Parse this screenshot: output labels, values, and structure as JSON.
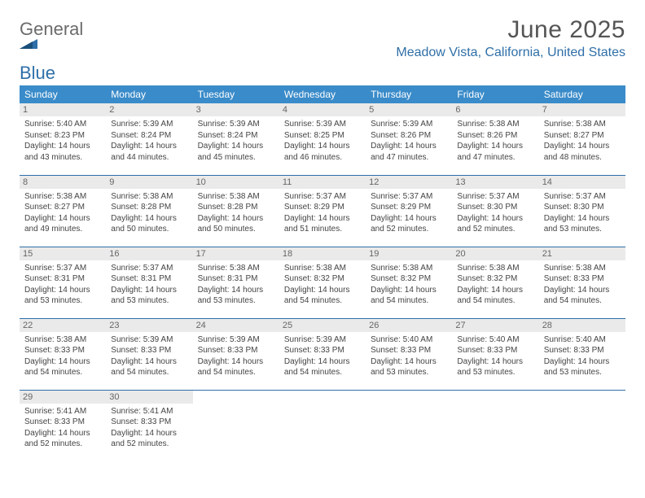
{
  "logo": {
    "line1": "General",
    "line2": "Blue"
  },
  "title": "June 2025",
  "location": "Meadow Vista, California, United States",
  "colors": {
    "header_bg": "#3a8bc9",
    "accent": "#2f6fa8",
    "text": "#333333",
    "muted": "#666666",
    "daynum_bg": "#eaeaea"
  },
  "weekdays": [
    "Sunday",
    "Monday",
    "Tuesday",
    "Wednesday",
    "Thursday",
    "Friday",
    "Saturday"
  ],
  "days": [
    {
      "n": 1,
      "sunrise": "5:40 AM",
      "sunset": "8:23 PM",
      "daylight": "14 hours and 43 minutes."
    },
    {
      "n": 2,
      "sunrise": "5:39 AM",
      "sunset": "8:24 PM",
      "daylight": "14 hours and 44 minutes."
    },
    {
      "n": 3,
      "sunrise": "5:39 AM",
      "sunset": "8:24 PM",
      "daylight": "14 hours and 45 minutes."
    },
    {
      "n": 4,
      "sunrise": "5:39 AM",
      "sunset": "8:25 PM",
      "daylight": "14 hours and 46 minutes."
    },
    {
      "n": 5,
      "sunrise": "5:39 AM",
      "sunset": "8:26 PM",
      "daylight": "14 hours and 47 minutes."
    },
    {
      "n": 6,
      "sunrise": "5:38 AM",
      "sunset": "8:26 PM",
      "daylight": "14 hours and 47 minutes."
    },
    {
      "n": 7,
      "sunrise": "5:38 AM",
      "sunset": "8:27 PM",
      "daylight": "14 hours and 48 minutes."
    },
    {
      "n": 8,
      "sunrise": "5:38 AM",
      "sunset": "8:27 PM",
      "daylight": "14 hours and 49 minutes."
    },
    {
      "n": 9,
      "sunrise": "5:38 AM",
      "sunset": "8:28 PM",
      "daylight": "14 hours and 50 minutes."
    },
    {
      "n": 10,
      "sunrise": "5:38 AM",
      "sunset": "8:28 PM",
      "daylight": "14 hours and 50 minutes."
    },
    {
      "n": 11,
      "sunrise": "5:37 AM",
      "sunset": "8:29 PM",
      "daylight": "14 hours and 51 minutes."
    },
    {
      "n": 12,
      "sunrise": "5:37 AM",
      "sunset": "8:29 PM",
      "daylight": "14 hours and 52 minutes."
    },
    {
      "n": 13,
      "sunrise": "5:37 AM",
      "sunset": "8:30 PM",
      "daylight": "14 hours and 52 minutes."
    },
    {
      "n": 14,
      "sunrise": "5:37 AM",
      "sunset": "8:30 PM",
      "daylight": "14 hours and 53 minutes."
    },
    {
      "n": 15,
      "sunrise": "5:37 AM",
      "sunset": "8:31 PM",
      "daylight": "14 hours and 53 minutes."
    },
    {
      "n": 16,
      "sunrise": "5:37 AM",
      "sunset": "8:31 PM",
      "daylight": "14 hours and 53 minutes."
    },
    {
      "n": 17,
      "sunrise": "5:38 AM",
      "sunset": "8:31 PM",
      "daylight": "14 hours and 53 minutes."
    },
    {
      "n": 18,
      "sunrise": "5:38 AM",
      "sunset": "8:32 PM",
      "daylight": "14 hours and 54 minutes."
    },
    {
      "n": 19,
      "sunrise": "5:38 AM",
      "sunset": "8:32 PM",
      "daylight": "14 hours and 54 minutes."
    },
    {
      "n": 20,
      "sunrise": "5:38 AM",
      "sunset": "8:32 PM",
      "daylight": "14 hours and 54 minutes."
    },
    {
      "n": 21,
      "sunrise": "5:38 AM",
      "sunset": "8:33 PM",
      "daylight": "14 hours and 54 minutes."
    },
    {
      "n": 22,
      "sunrise": "5:38 AM",
      "sunset": "8:33 PM",
      "daylight": "14 hours and 54 minutes."
    },
    {
      "n": 23,
      "sunrise": "5:39 AM",
      "sunset": "8:33 PM",
      "daylight": "14 hours and 54 minutes."
    },
    {
      "n": 24,
      "sunrise": "5:39 AM",
      "sunset": "8:33 PM",
      "daylight": "14 hours and 54 minutes."
    },
    {
      "n": 25,
      "sunrise": "5:39 AM",
      "sunset": "8:33 PM",
      "daylight": "14 hours and 54 minutes."
    },
    {
      "n": 26,
      "sunrise": "5:40 AM",
      "sunset": "8:33 PM",
      "daylight": "14 hours and 53 minutes."
    },
    {
      "n": 27,
      "sunrise": "5:40 AM",
      "sunset": "8:33 PM",
      "daylight": "14 hours and 53 minutes."
    },
    {
      "n": 28,
      "sunrise": "5:40 AM",
      "sunset": "8:33 PM",
      "daylight": "14 hours and 53 minutes."
    },
    {
      "n": 29,
      "sunrise": "5:41 AM",
      "sunset": "8:33 PM",
      "daylight": "14 hours and 52 minutes."
    },
    {
      "n": 30,
      "sunrise": "5:41 AM",
      "sunset": "8:33 PM",
      "daylight": "14 hours and 52 minutes."
    }
  ],
  "labels": {
    "sunrise": "Sunrise:",
    "sunset": "Sunset:",
    "daylight": "Daylight:"
  },
  "layout": {
    "start_weekday": 0,
    "cols": 7
  }
}
